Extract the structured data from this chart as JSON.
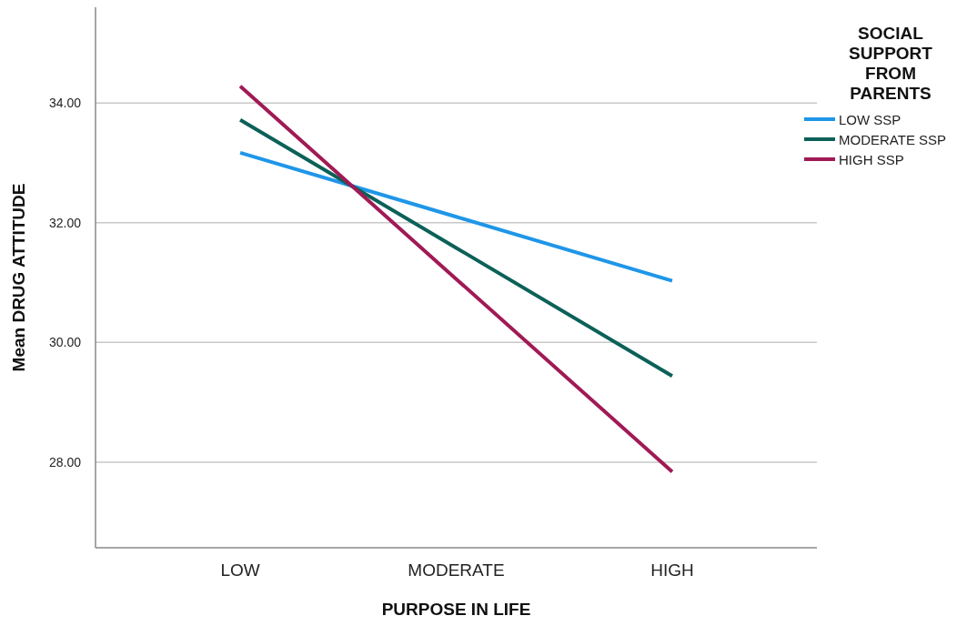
{
  "chart_data": {
    "type": "line",
    "xlabel": "PURPOSE IN LIFE",
    "ylabel": "Mean DRUG ATTITUDE",
    "legend_title": "SOCIAL SUPPORT FROM PARENTS",
    "categories": [
      "LOW",
      "MODERATE",
      "HIGH"
    ],
    "series": [
      {
        "name": "LOW SSP",
        "color": "#1f96e8",
        "values": [
          33.17,
          32.1,
          31.03
        ]
      },
      {
        "name": "MODERATE SSP",
        "color": "#0b6158",
        "values": [
          33.72,
          31.58,
          29.44
        ]
      },
      {
        "name": "HIGH SSP",
        "color": "#a01a55",
        "values": [
          34.28,
          31.06,
          27.84
        ]
      }
    ],
    "ylim": [
      26.57,
      35.6
    ],
    "yticks": [
      {
        "value": 28,
        "label": "28.00"
      },
      {
        "value": 30,
        "label": "30.00"
      },
      {
        "value": 32,
        "label": "32.00"
      },
      {
        "value": 34,
        "label": "34.00"
      }
    ],
    "grid": "y",
    "legend": "top right",
    "marker": "none",
    "line_style": "solid"
  }
}
